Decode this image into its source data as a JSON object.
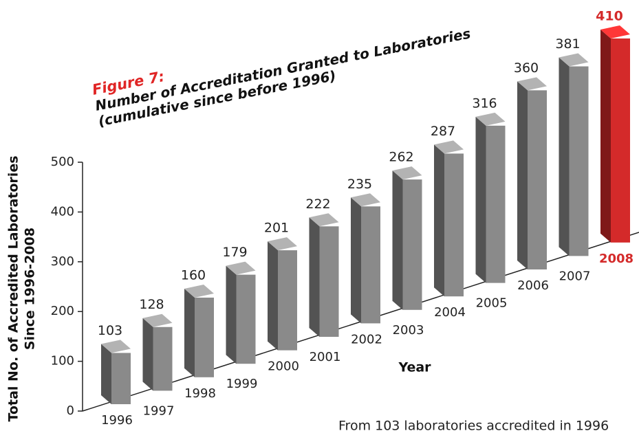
{
  "chart_data": {
    "type": "bar3d",
    "title": "Figure 7:",
    "subtitle": "Number of Accreditation Granted to Laboratories",
    "note": "(cumulative since before 1996)",
    "y_label": [
      "Total No. of Accredited Laboratories",
      "Since 1996-2008"
    ],
    "x_label": "Year",
    "caption": "From 103 laboratories accredited in 1996",
    "categories": [
      "1996",
      "1997",
      "1998",
      "1999",
      "2000",
      "2001",
      "2002",
      "2003",
      "2004",
      "2005",
      "2006",
      "2007",
      "2008"
    ],
    "values": [
      103,
      128,
      160,
      179,
      201,
      222,
      235,
      262,
      287,
      316,
      360,
      381,
      410
    ],
    "colors": [
      "#8a8a8a",
      "#8a8a8a",
      "#8a8a8a",
      "#8a8a8a",
      "#8a8a8a",
      "#8a8a8a",
      "#8a8a8a",
      "#8a8a8a",
      "#8a8a8a",
      "#8a8a8a",
      "#8a8a8a",
      "#8a8a8a",
      "#d42a2a"
    ],
    "ylim": [
      0,
      500
    ],
    "yticks": [
      0,
      100,
      200,
      300,
      400,
      500
    ]
  }
}
